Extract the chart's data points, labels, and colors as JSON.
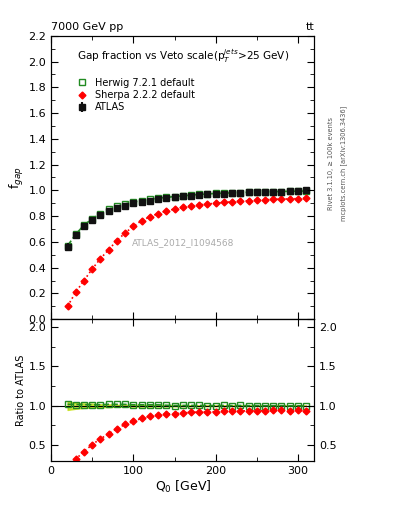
{
  "title_main": "Gap fraction vs Veto scale(p$_T^{jets}$>25 GeV)",
  "collision_label": "7000 GeV pp",
  "tt_label": "tt",
  "watermark": "ATLAS_2012_I1094568",
  "rivet_label": "Rivet 3.1.10, ≥ 100k events",
  "mcplots_label": "mcplots.cern.ch [arXiv:1306.3436]",
  "xlabel": "Q$_0$ [GeV]",
  "ylabel_main": "f$_{gap}$",
  "ylabel_ratio": "Ratio to ATLAS",
  "xlim": [
    0,
    320
  ],
  "ylim_main": [
    0,
    2.2
  ],
  "ylim_ratio": [
    0.3,
    2.1
  ],
  "atlas_x": [
    20,
    30,
    40,
    50,
    60,
    70,
    80,
    90,
    100,
    110,
    120,
    130,
    140,
    150,
    160,
    170,
    180,
    190,
    200,
    210,
    220,
    230,
    240,
    250,
    260,
    270,
    280,
    290,
    300,
    310
  ],
  "atlas_y": [
    0.56,
    0.65,
    0.72,
    0.77,
    0.81,
    0.84,
    0.86,
    0.88,
    0.9,
    0.91,
    0.92,
    0.93,
    0.94,
    0.95,
    0.955,
    0.96,
    0.965,
    0.97,
    0.975,
    0.975,
    0.98,
    0.98,
    0.985,
    0.985,
    0.99,
    0.99,
    0.99,
    0.995,
    0.995,
    1.0
  ],
  "atlas_yerr": [
    0.03,
    0.025,
    0.02,
    0.02,
    0.015,
    0.015,
    0.01,
    0.01,
    0.01,
    0.01,
    0.01,
    0.008,
    0.008,
    0.007,
    0.007,
    0.006,
    0.006,
    0.005,
    0.005,
    0.005,
    0.005,
    0.005,
    0.004,
    0.004,
    0.004,
    0.004,
    0.003,
    0.003,
    0.003,
    0.003
  ],
  "herwig_x": [
    20,
    30,
    40,
    50,
    60,
    70,
    80,
    90,
    100,
    110,
    120,
    130,
    140,
    150,
    160,
    170,
    180,
    190,
    200,
    210,
    220,
    230,
    240,
    250,
    260,
    270,
    280,
    290,
    300,
    310
  ],
  "herwig_y": [
    0.57,
    0.66,
    0.73,
    0.78,
    0.82,
    0.855,
    0.875,
    0.895,
    0.91,
    0.92,
    0.93,
    0.94,
    0.945,
    0.952,
    0.958,
    0.963,
    0.968,
    0.972,
    0.976,
    0.978,
    0.981,
    0.983,
    0.985,
    0.987,
    0.989,
    0.99,
    0.991,
    0.993,
    0.994,
    0.995
  ],
  "sherpa_x": [
    20,
    30,
    40,
    50,
    60,
    70,
    80,
    90,
    100,
    110,
    120,
    130,
    140,
    150,
    160,
    170,
    180,
    190,
    200,
    210,
    220,
    230,
    240,
    250,
    260,
    270,
    280,
    290,
    300,
    310
  ],
  "sherpa_y": [
    0.1,
    0.21,
    0.3,
    0.39,
    0.47,
    0.54,
    0.61,
    0.67,
    0.72,
    0.765,
    0.795,
    0.82,
    0.84,
    0.855,
    0.868,
    0.878,
    0.887,
    0.894,
    0.9,
    0.906,
    0.911,
    0.916,
    0.92,
    0.924,
    0.927,
    0.93,
    0.932,
    0.934,
    0.936,
    0.938
  ],
  "atlas_color": "#111111",
  "herwig_color": "#228B22",
  "sherpa_color": "#FF0000",
  "legend_labels": [
    "ATLAS",
    "Herwig 7.2.1 default",
    "Sherpa 2.2.2 default"
  ]
}
